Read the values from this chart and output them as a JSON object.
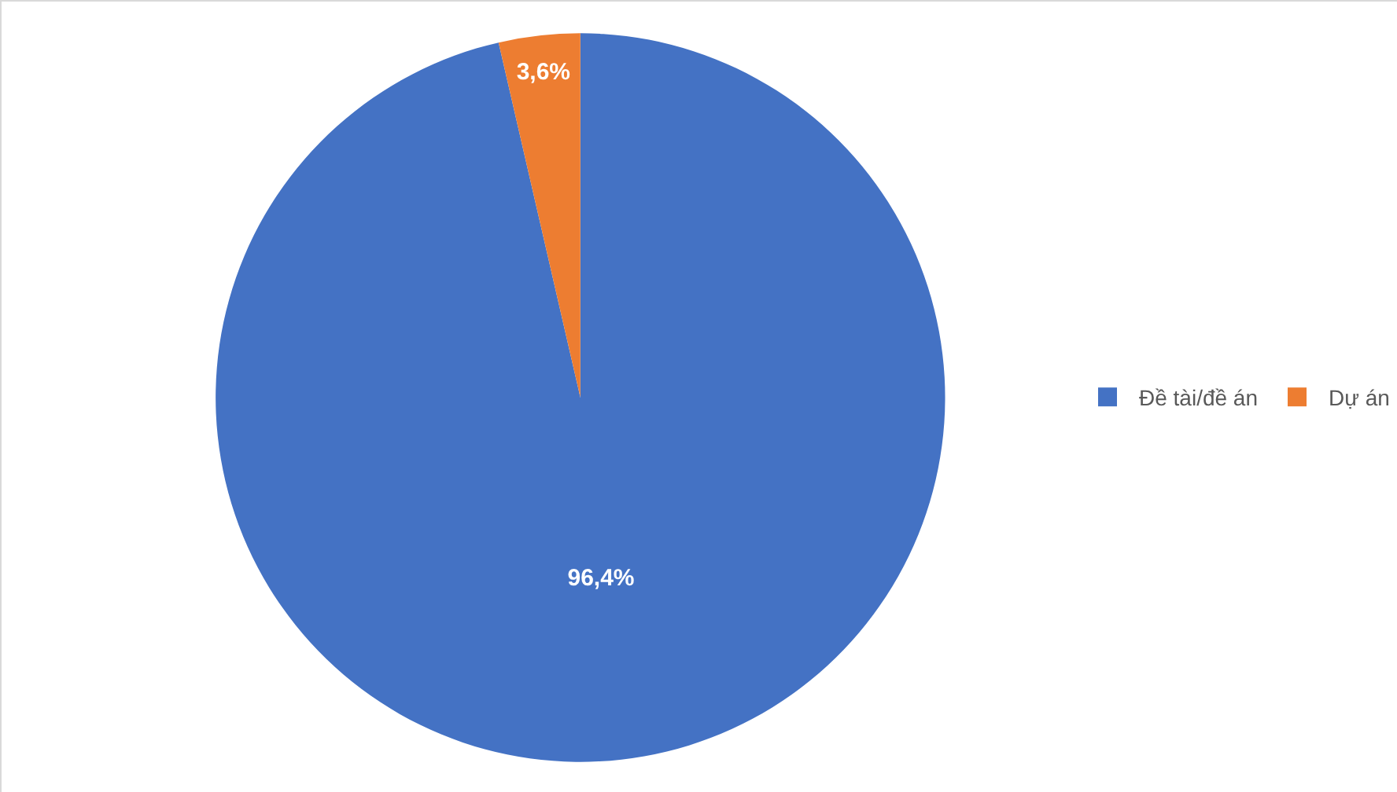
{
  "chart_data": {
    "type": "pie",
    "categories": [
      "Đề tài/đề án",
      "Dự án"
    ],
    "values": [
      96.4,
      3.6
    ],
    "colors": [
      "#4472c4",
      "#ed7d31"
    ],
    "value_labels": [
      "96,4%",
      "3,6%"
    ],
    "legend": "right"
  }
}
